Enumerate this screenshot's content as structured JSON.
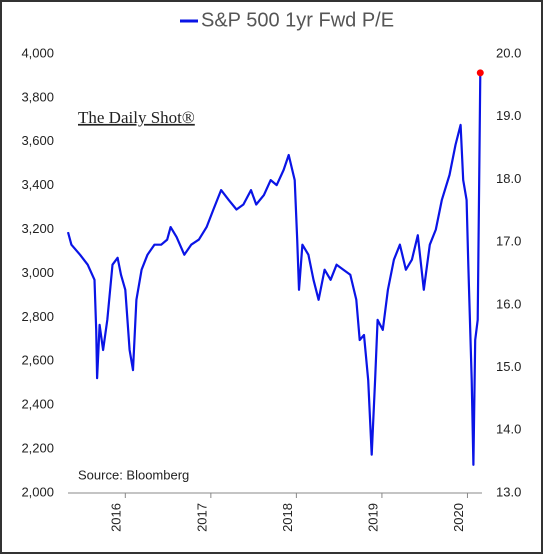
{
  "chart_data": {
    "type": "line",
    "series": [
      {
        "name": "S&P 500 1yr Fwd P/E",
        "color": "#0a14e6",
        "axis": "y2",
        "values": [
          17.16,
          16.96,
          16.8,
          16.64,
          16.4,
          15.6,
          14.83,
          15.68,
          15.28,
          15.76,
          16.64,
          16.75,
          16.48,
          16.24,
          15.28,
          14.96,
          16.08,
          16.56,
          16.8,
          16.96,
          16.96,
          17.04,
          17.24,
          17.08,
          16.8,
          16.96,
          17.04,
          17.24,
          17.52,
          17.83,
          17.67,
          17.52,
          17.6,
          17.83,
          17.6,
          17.75,
          17.99,
          17.91,
          18.15,
          18.39,
          17.99,
          17.04,
          16.24,
          16.96,
          16.8,
          16.4,
          16.08,
          16.56,
          16.4,
          16.64,
          16.56,
          16.48,
          16.08,
          15.44,
          15.52,
          14.8,
          13.61,
          14.8,
          15.76,
          15.6,
          16.24,
          16.72,
          16.96,
          16.56,
          16.72,
          17.11,
          16.24,
          16.96,
          17.2,
          17.67,
          18.07,
          18.55,
          18.87,
          17.99,
          17.67,
          16.64,
          14.8,
          13.45,
          15.44,
          15.76,
          18.31,
          19.7
        ]
      }
    ],
    "x": [
      2015.33,
      2015.37,
      2015.47,
      2015.56,
      2015.64,
      2015.66,
      2015.67,
      2015.7,
      2015.74,
      2015.79,
      2015.85,
      2015.91,
      2015.95,
      2016.0,
      2016.05,
      2016.09,
      2016.13,
      2016.19,
      2016.26,
      2016.34,
      2016.42,
      2016.49,
      2016.53,
      2016.6,
      2016.69,
      2016.77,
      2016.86,
      2016.95,
      2017.03,
      2017.12,
      2017.21,
      2017.3,
      2017.38,
      2017.47,
      2017.53,
      2017.62,
      2017.7,
      2017.77,
      2017.85,
      2017.91,
      2017.98,
      2018.01,
      2018.03,
      2018.07,
      2018.14,
      2018.2,
      2018.26,
      2018.33,
      2018.4,
      2018.47,
      2018.55,
      2018.63,
      2018.7,
      2018.74,
      2018.79,
      2018.84,
      2018.88,
      2018.92,
      2018.95,
      2019.01,
      2019.07,
      2019.14,
      2019.21,
      2019.28,
      2019.35,
      2019.42,
      2019.49,
      2019.56,
      2019.63,
      2019.7,
      2019.79,
      2019.86,
      2019.92,
      2019.95,
      2019.99,
      2020.01,
      2020.05,
      2020.07,
      2020.09,
      2020.12,
      2020.14,
      2020.15
    ],
    "xlim": [
      2015.33,
      2020.17
    ],
    "xticks": [
      2016,
      2017,
      2018,
      2019,
      2020
    ],
    "ylim": [
      2000,
      4000
    ],
    "yticks": [
      {
        "value": 2000,
        "label": "2,000"
      },
      {
        "value": 2200,
        "label": "2,200"
      },
      {
        "value": 2400,
        "label": "2,400"
      },
      {
        "value": 2600,
        "label": "2,600"
      },
      {
        "value": 2800,
        "label": "2,800"
      },
      {
        "value": 3000,
        "label": "3,000"
      },
      {
        "value": 3200,
        "label": "3,200"
      },
      {
        "value": 3400,
        "label": "3,400"
      },
      {
        "value": 3600,
        "label": "3,600"
      },
      {
        "value": 3800,
        "label": "3,800"
      },
      {
        "value": 4000,
        "label": "4,000"
      }
    ],
    "y2lim": [
      13,
      20
    ],
    "y2ticks": [
      {
        "value": 13,
        "label": "13.0"
      },
      {
        "value": 14,
        "label": "14.0"
      },
      {
        "value": 15,
        "label": "15.0"
      },
      {
        "value": 16,
        "label": "16.0"
      },
      {
        "value": 17,
        "label": "17.0"
      },
      {
        "value": 18,
        "label": "18.0"
      },
      {
        "value": 19,
        "label": "19.0"
      },
      {
        "value": 20,
        "label": "20.0"
      }
    ],
    "last_point_color": "#ff0000",
    "annotations": [
      "The Daily Shot®",
      "Source: Bloomberg"
    ]
  }
}
